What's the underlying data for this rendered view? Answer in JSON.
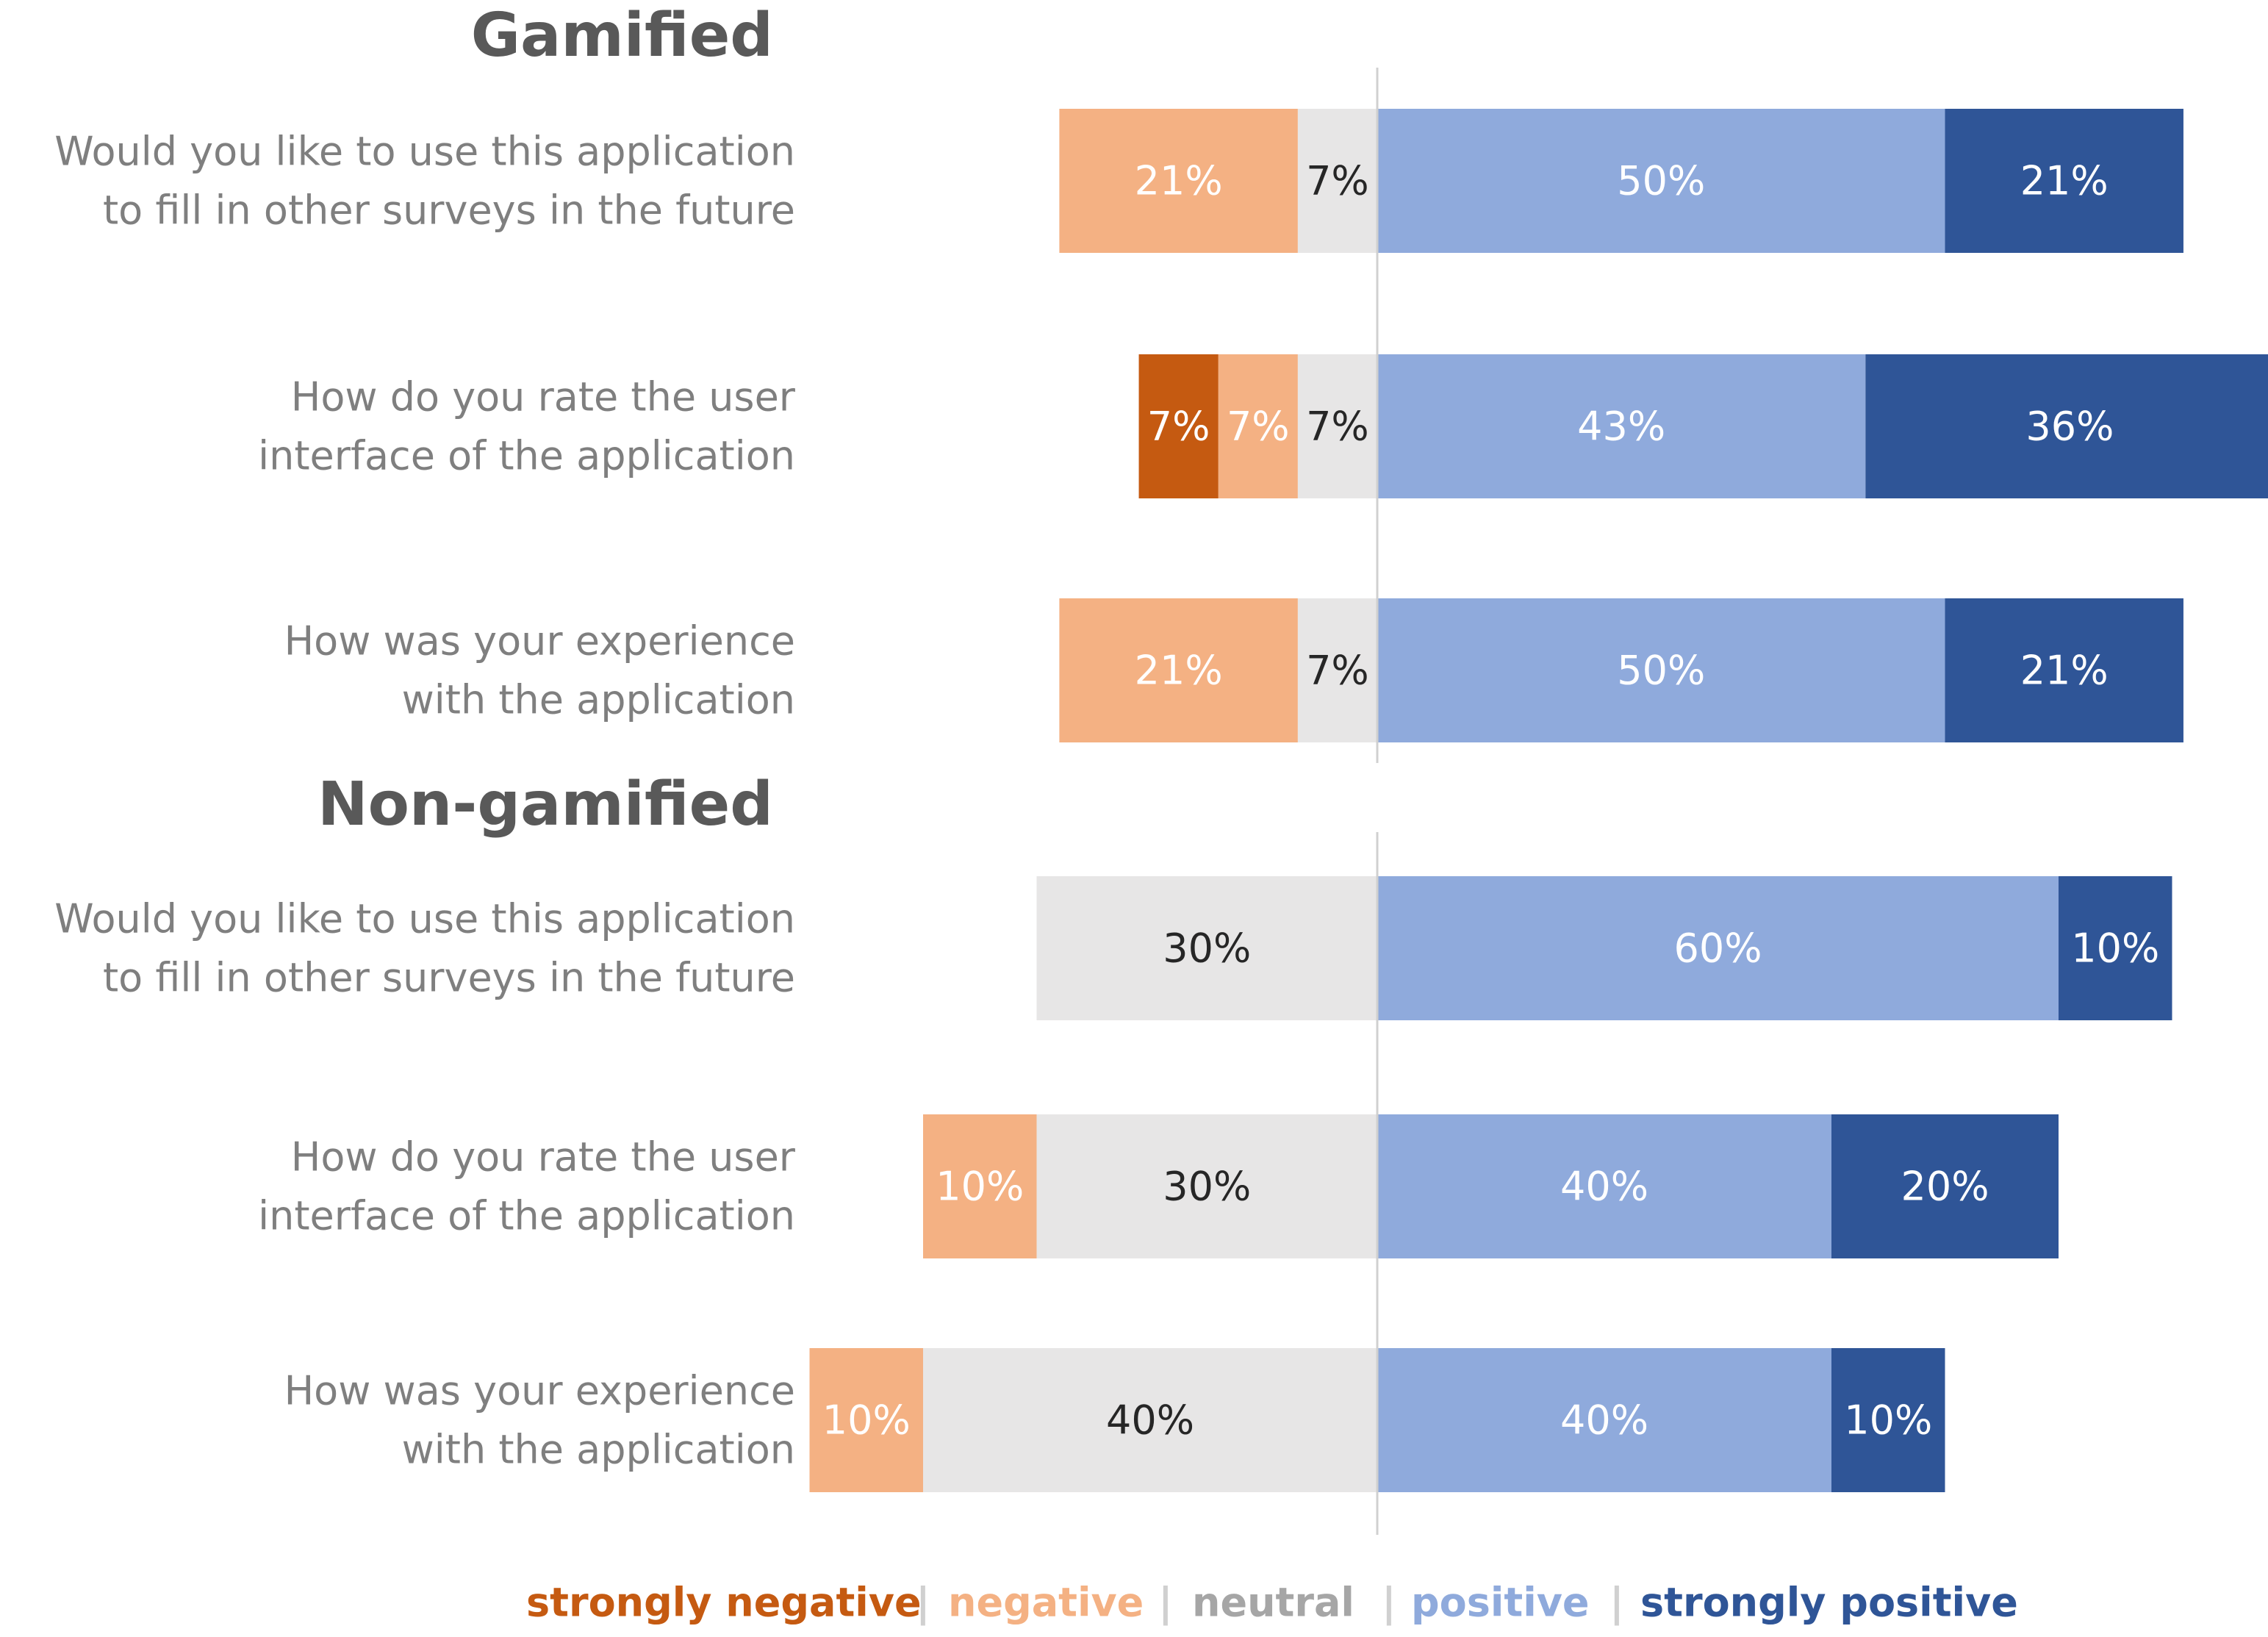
{
  "chart_data": {
    "type": "diverging-stacked-bar",
    "title": "",
    "value_unit": "%",
    "categories_order": [
      "strongly negative",
      "negative",
      "neutral",
      "positive",
      "strongly positive"
    ],
    "colors": {
      "strongly negative": "#c55a11",
      "negative": "#f4b183",
      "neutral": "#e7e6e6",
      "positive": "#8faadc",
      "strongly positive": "#2f5597",
      "axis": "#d0d0d0",
      "question_text": "#7f7f7f",
      "title_text": "#595959"
    },
    "groups": [
      {
        "title": "Gamified",
        "questions": [
          {
            "label_lines": [
              "Would you like to use this application",
              "to fill in other surveys in the  future"
            ],
            "values": {
              "strongly negative": 0,
              "negative": 21,
              "neutral": 7,
              "positive": 50,
              "strongly positive": 21
            }
          },
          {
            "label_lines": [
              "How do you rate the user",
              "interface of the application"
            ],
            "values": {
              "strongly negative": 7,
              "negative": 7,
              "neutral": 7,
              "positive": 43,
              "strongly positive": 36
            }
          },
          {
            "label_lines": [
              "How was your experience",
              "with the application"
            ],
            "values": {
              "strongly negative": 0,
              "negative": 21,
              "neutral": 7,
              "positive": 50,
              "strongly positive": 21
            }
          }
        ]
      },
      {
        "title": "Non-gamified",
        "questions": [
          {
            "label_lines": [
              "Would you like to use this application",
              "to fill in other surveys in the  future"
            ],
            "values": {
              "strongly negative": 0,
              "negative": 0,
              "neutral": 30,
              "positive": 60,
              "strongly positive": 10
            }
          },
          {
            "label_lines": [
              "How do you rate the user",
              "interface of the application"
            ],
            "values": {
              "strongly negative": 0,
              "negative": 10,
              "neutral": 30,
              "positive": 40,
              "strongly positive": 20
            }
          },
          {
            "label_lines": [
              "How was your experience",
              "with the application"
            ],
            "values": {
              "strongly negative": 0,
              "negative": 10,
              "neutral": 40,
              "positive": 40,
              "strongly positive": 10
            }
          }
        ]
      }
    ],
    "legend": {
      "position": "bottom-center",
      "separator": "|",
      "items": [
        "strongly negative",
        "negative",
        "neutral",
        "positive",
        "strongly positive"
      ]
    }
  }
}
